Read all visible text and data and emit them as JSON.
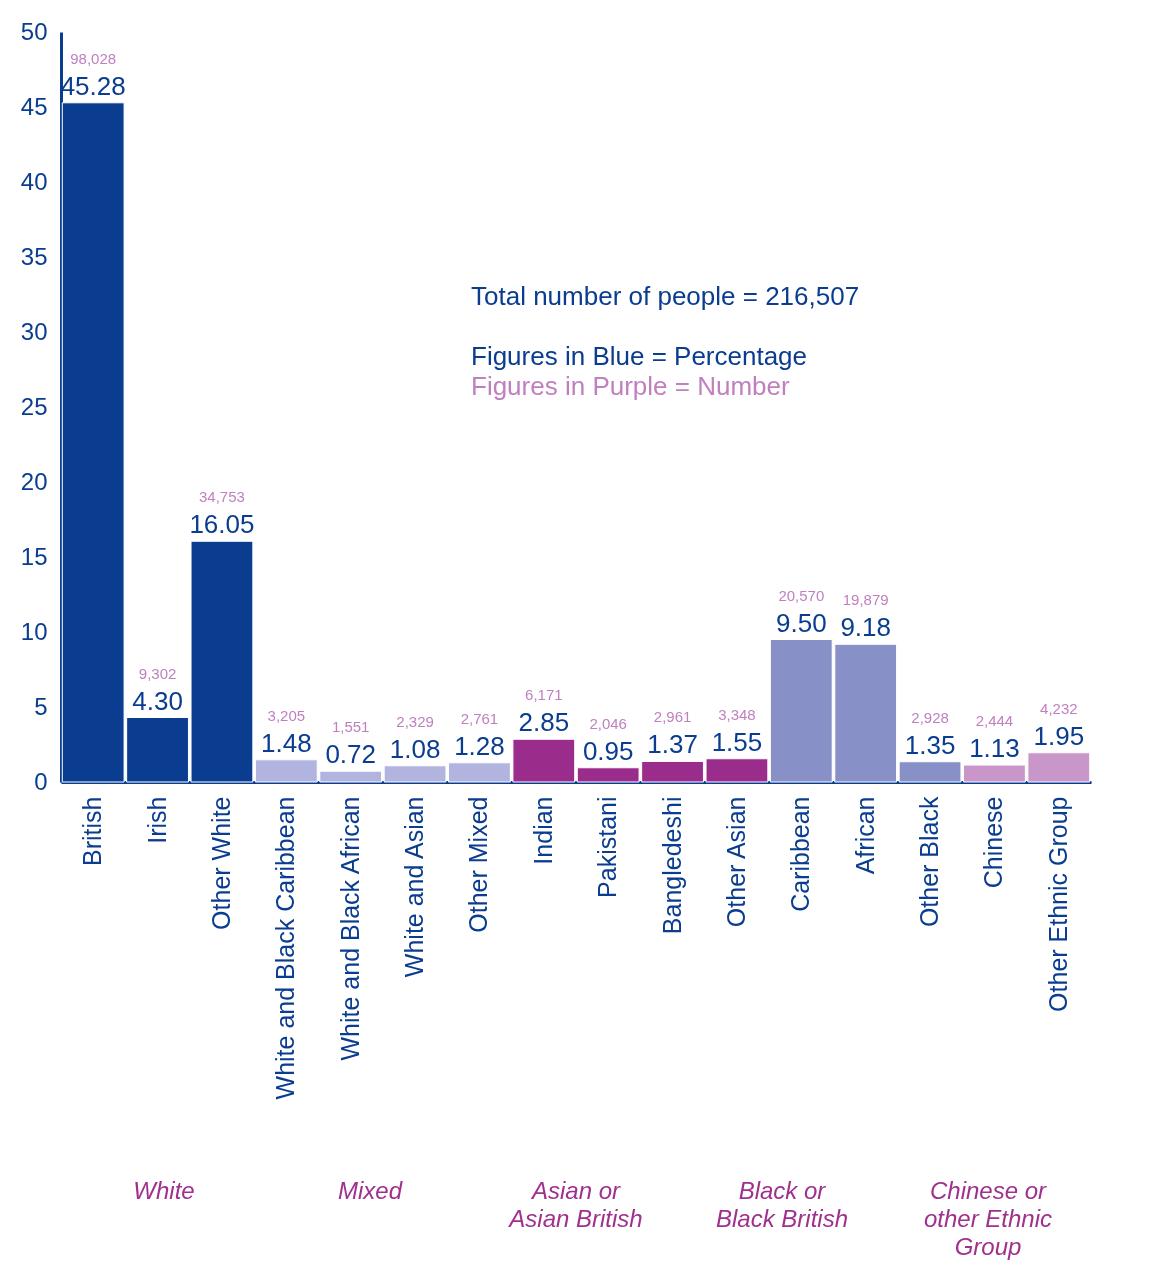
{
  "chart_data": {
    "type": "bar",
    "categories": [
      "British",
      "Irish",
      "Other White",
      "White and Black Caribbean",
      "White and Black African",
      "White and Asian",
      "Other Mixed",
      "Indian",
      "Pakistani",
      "Bangledeshi",
      "Other Asian",
      "Caribbean",
      "African",
      "Other Black",
      "Chinese",
      "Other Ethnic Group"
    ],
    "values": [
      45.28,
      4.3,
      16.05,
      1.48,
      0.72,
      1.08,
      1.28,
      2.85,
      0.95,
      1.37,
      1.55,
      9.5,
      9.18,
      1.35,
      1.13,
      1.95
    ],
    "value_labels": [
      "45.28",
      "4.30",
      "16.05",
      "1.48",
      "0.72",
      "1.08",
      "1.28",
      "2.85",
      "0.95",
      "1.37",
      "1.55",
      "9.50",
      "9.18",
      "1.35",
      "1.13",
      "1.95"
    ],
    "colors": [
      "#0a3c8f",
      "#0a3c8f",
      "#0a3c8f",
      "#b0b4de",
      "#b0b4de",
      "#b0b4de",
      "#b0b4de",
      "#9a2c8c",
      "#9a2c8c",
      "#9a2c8c",
      "#9a2c8c",
      "#8890c8",
      "#8890c8",
      "#8890c8",
      "#c896c8",
      "#c896c8"
    ],
    "ylim": [
      0,
      50
    ],
    "yticks": [
      0,
      5,
      10,
      15,
      20,
      25,
      30,
      35,
      40,
      45,
      50
    ],
    "annotations": [
      "Total number of people = 216,507",
      "Figures in Blue = Percentage",
      "Figures in Purple = Number",
      {
        "text": "98,028",
        "x": "British",
        "y": 45.28
      },
      {
        "text": "9,302",
        "x": "Irish",
        "y": 4.3
      },
      {
        "text": "34,753",
        "x": "Other White",
        "y": 16.05
      },
      {
        "text": "3,205",
        "x": "White and Black Caribbean",
        "y": 1.48
      },
      {
        "text": "1,551",
        "x": "White and Black African",
        "y": 0.72
      },
      {
        "text": "2,329",
        "x": "White and Asian",
        "y": 1.08
      },
      {
        "text": "2,761",
        "x": "Other Mixed",
        "y": 1.28
      },
      {
        "text": "6,171",
        "x": "Indian",
        "y": 2.85
      },
      {
        "text": "2,046",
        "x": "Pakistani",
        "y": 0.95
      },
      {
        "text": "2,961",
        "x": "Bangledeshi",
        "y": 1.37
      },
      {
        "text": "3,348",
        "x": "Other Asian",
        "y": 1.55
      },
      {
        "text": "20,570",
        "x": "Caribbean",
        "y": 9.5
      },
      {
        "text": "19,879",
        "x": "African",
        "y": 9.18
      },
      {
        "text": "2,928",
        "x": "Other Black",
        "y": 1.35
      },
      {
        "text": "2,444",
        "x": "Chinese",
        "y": 1.13
      },
      {
        "text": "4,232",
        "x": "Other Ethnic Group",
        "y": 1.95
      },
      "White",
      "Mixed",
      "Asian or Asian British",
      "Black or Black British",
      "Chinese or other Ethnic Group"
    ]
  }
}
